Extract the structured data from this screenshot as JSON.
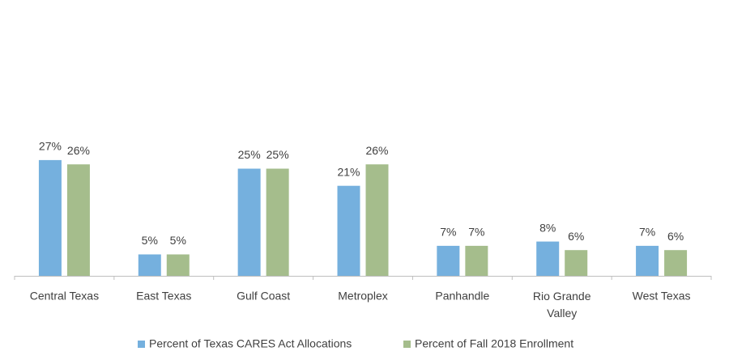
{
  "chart_data": {
    "type": "bar",
    "categories": [
      "Central Texas",
      "East Texas",
      "Gulf Coast",
      "Metroplex",
      "Panhandle",
      "Rio Grande Valley",
      "West Texas"
    ],
    "series": [
      {
        "name": "Percent of Texas CARES Act Allocations",
        "color": "#75b0de",
        "values": [
          27,
          5,
          25,
          21,
          7,
          8,
          7
        ],
        "value_labels": [
          "27%",
          "5%",
          "25%",
          "21%",
          "7%",
          "8%",
          "7%"
        ]
      },
      {
        "name": "Percent of Fall 2018 Enrollment",
        "color": "#a5bd8c",
        "values": [
          26,
          5,
          25,
          26,
          7,
          6,
          6
        ],
        "value_labels": [
          "26%",
          "5%",
          "25%",
          "26%",
          "7%",
          "6%",
          "6%"
        ]
      }
    ],
    "legend": "bottom"
  }
}
